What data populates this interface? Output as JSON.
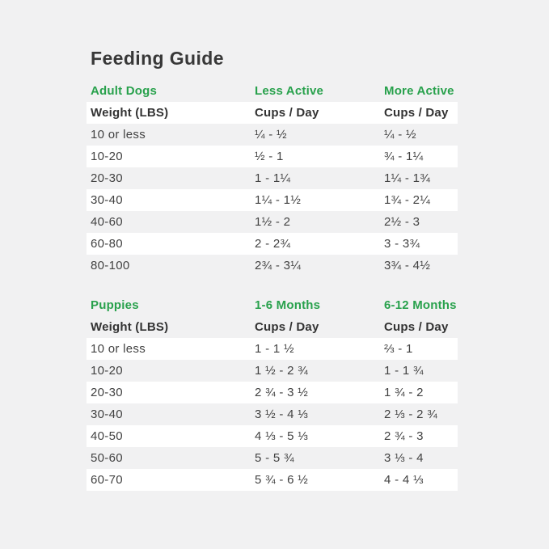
{
  "title": "Feeding Guide",
  "colors": {
    "background": "#f1f1f2",
    "row_stripe": "#ffffff",
    "accent_green": "#28a14c",
    "text": "#3d3d3d"
  },
  "chart_data": [
    {
      "type": "table",
      "section": "Adult Dogs",
      "section_headers": [
        "Adult Dogs",
        "Less Active",
        "More Active"
      ],
      "column_headers": [
        "Weight (LBS)",
        "Cups / Day",
        "Cups / Day"
      ],
      "rows": [
        [
          "10 or less",
          "¼ - ½",
          "¼ - ½"
        ],
        [
          "10-20",
          "½ - 1",
          "¾ - 1¼"
        ],
        [
          "20-30",
          "1 - 1¼",
          "1¼ - 1¾"
        ],
        [
          "30-40",
          "1¼ - 1½",
          "1¾ - 2¼"
        ],
        [
          "40-60",
          "1½ - 2",
          "2½ - 3"
        ],
        [
          "60-80",
          "2 - 2¾",
          "3 - 3¾"
        ],
        [
          "80-100",
          "2¾ - 3¼",
          "3¾ - 4½"
        ]
      ]
    },
    {
      "type": "table",
      "section": "Puppies",
      "section_headers": [
        "Puppies",
        "1-6 Months",
        "6-12 Months"
      ],
      "column_headers": [
        "Weight (LBS)",
        "Cups / Day",
        "Cups / Day"
      ],
      "rows": [
        [
          "10 or less",
          "1 - 1 ½",
          "⅔ - 1"
        ],
        [
          "10-20",
          "1 ½ - 2 ¾",
          "1 - 1 ¾"
        ],
        [
          "20-30",
          "2 ¾ - 3 ½",
          "1 ¾ - 2"
        ],
        [
          "30-40",
          "3 ½ - 4 ⅓",
          "2 ⅓ - 2 ¾"
        ],
        [
          "40-50",
          "4 ⅓ - 5 ⅓",
          "2 ¾ - 3"
        ],
        [
          "50-60",
          "5 - 5 ¾",
          "3 ⅓ - 4"
        ],
        [
          "60-70",
          "5 ¾ - 6 ½",
          "4 - 4 ⅓"
        ]
      ]
    }
  ]
}
